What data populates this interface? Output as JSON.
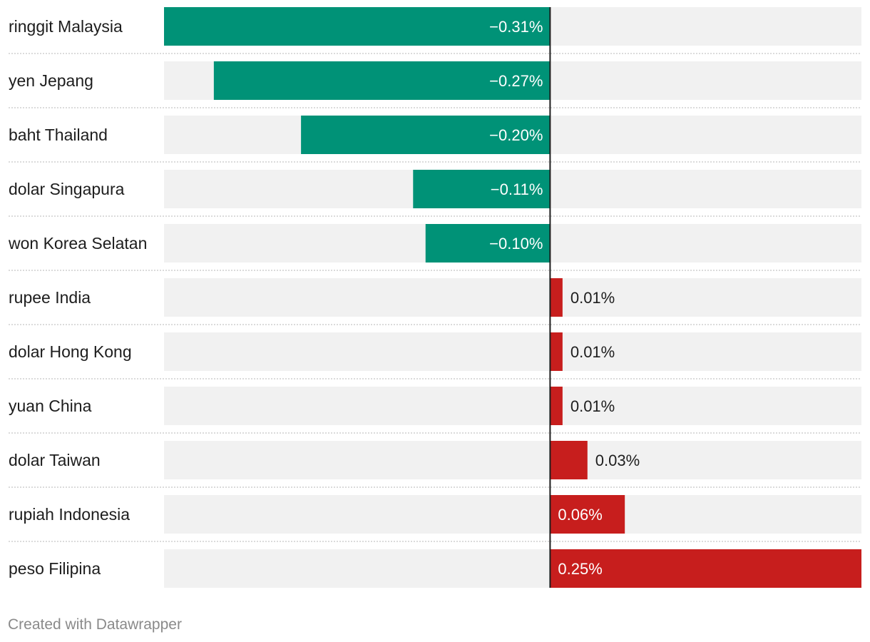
{
  "chart_data": {
    "type": "bar",
    "orientation": "horizontal",
    "categories": [
      "ringgit Malaysia",
      "yen Jepang",
      "baht Thailand",
      "dolar Singapura",
      "won Korea Selatan",
      "rupee India",
      "dolar Hong Kong",
      "yuan China",
      "dolar Taiwan",
      "rupiah Indonesia",
      "peso Filipina"
    ],
    "values": [
      -0.31,
      -0.27,
      -0.2,
      -0.11,
      -0.1,
      0.01,
      0.01,
      0.01,
      0.03,
      0.06,
      0.25
    ],
    "value_labels": [
      "−0.31%",
      "−0.27%",
      "−0.20%",
      "−0.11%",
      "−0.10%",
      "0.01%",
      "0.01%",
      "0.01%",
      "0.03%",
      "0.06%",
      "0.25%"
    ],
    "xlim": [
      -0.31,
      0.25
    ],
    "title": "",
    "xlabel": "",
    "ylabel": "",
    "colors": {
      "negative": "#009277",
      "positive": "#c71e1d",
      "track": "#f1f1f1",
      "zero_line": "#1d1d1d",
      "separator": "#cfcfcf"
    }
  },
  "footer": {
    "credit": "Created with Datawrapper"
  }
}
